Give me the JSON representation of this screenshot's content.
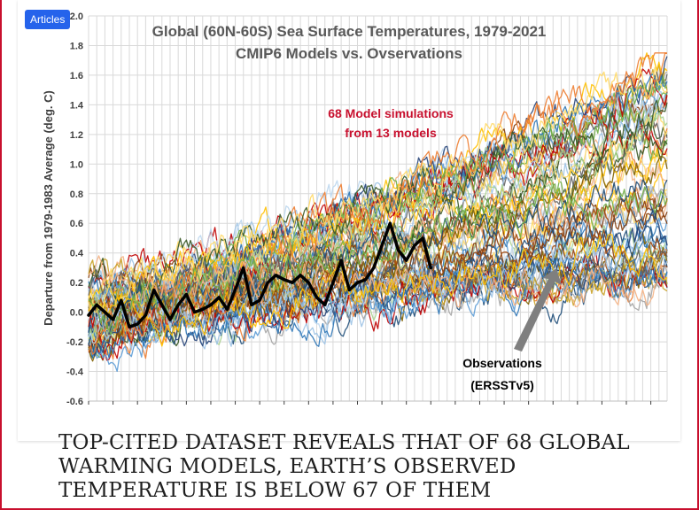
{
  "badge": {
    "label": "Articles"
  },
  "headline": "TOP-CITED DATASET REVEALS THAT OF 68 GLOBAL WARMING MODELS, EARTH’S OBSERVED TEMPERATURE IS BELOW 67 OF THEM",
  "chart_data": {
    "type": "line",
    "title": "Global (60N-60S) Sea Surface Temperatures, 1979-2021",
    "subtitle": "CMIP6 Models vs. Ovservations",
    "ylabel": "Departure from 1979-1983 Average (deg. C)",
    "xlabel": "",
    "ylim": [
      -0.6,
      2.0
    ],
    "xlim": [
      1979,
      2050
    ],
    "grid": true,
    "y_ticks": [
      "-0.6",
      "-0.4",
      "-0.2",
      "0.0",
      "0.2",
      "0.4",
      "0.6",
      "0.8",
      "1.0",
      "1.2",
      "1.4",
      "1.6",
      "1.8",
      "2.0"
    ],
    "annotations": [
      {
        "text": "68 Model simulations",
        "color": "#c8102e"
      },
      {
        "text": "from 13 models",
        "color": "#c8102e"
      },
      {
        "text": "Observations",
        "color": "#000000"
      },
      {
        "text": "(ERSSTv5)",
        "color": "#000000"
      }
    ],
    "model_ensemble": {
      "count": 68,
      "start_year": 1979,
      "end_year": 2050,
      "start_range": [
        -0.25,
        0.2
      ],
      "end_range": [
        0.2,
        1.7
      ],
      "colors": [
        "#1f4e79",
        "#2e75b6",
        "#9dc3e6",
        "#ed7d31",
        "#f4b183",
        "#ffc000",
        "#ffd966",
        "#70ad47",
        "#a9d18e",
        "#375623",
        "#7f6000",
        "#843c0c",
        "#a5a5a5",
        "#c00000",
        "#5b9bd5",
        "#bdd7ee",
        "#c9a227",
        "#264478",
        "#9e480e",
        "#636363"
      ]
    },
    "series": [
      {
        "name": "Observations (ERSSTv5)",
        "color": "#000000",
        "x": [
          1979,
          1980,
          1981,
          1982,
          1983,
          1984,
          1985,
          1986,
          1987,
          1988,
          1989,
          1990,
          1991,
          1992,
          1993,
          1994,
          1995,
          1996,
          1997,
          1998,
          1999,
          2000,
          2001,
          2002,
          2003,
          2004,
          2005,
          2006,
          2007,
          2008,
          2009,
          2010,
          2011,
          2012,
          2013,
          2014,
          2015,
          2016,
          2017,
          2018,
          2019,
          2020,
          2021
        ],
        "values": [
          -0.02,
          0.05,
          0.0,
          -0.05,
          0.08,
          -0.1,
          -0.08,
          -0.02,
          0.15,
          0.05,
          -0.05,
          0.05,
          0.12,
          0.0,
          0.02,
          0.05,
          0.1,
          0.02,
          0.15,
          0.3,
          0.05,
          0.08,
          0.2,
          0.25,
          0.22,
          0.2,
          0.25,
          0.2,
          0.1,
          0.05,
          0.2,
          0.35,
          0.15,
          0.2,
          0.22,
          0.3,
          0.45,
          0.6,
          0.42,
          0.35,
          0.45,
          0.5,
          0.3
        ]
      }
    ]
  }
}
